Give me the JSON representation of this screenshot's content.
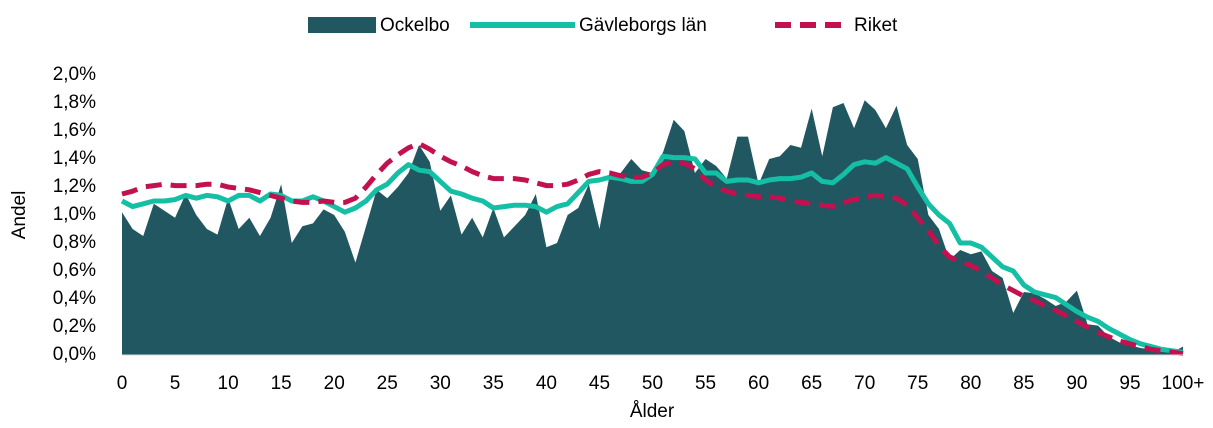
{
  "chart_data": {
    "type": "area-line",
    "xlabel": "Ålder",
    "ylabel": "Andel",
    "categories": [
      "0",
      null,
      null,
      null,
      null,
      "5",
      null,
      null,
      null,
      null,
      "10",
      null,
      null,
      null,
      null,
      "15",
      null,
      null,
      null,
      null,
      "20",
      null,
      null,
      null,
      null,
      "25",
      null,
      null,
      null,
      null,
      "30",
      null,
      null,
      null,
      null,
      "35",
      null,
      null,
      null,
      null,
      "40",
      null,
      null,
      null,
      null,
      "45",
      null,
      null,
      null,
      null,
      "50",
      null,
      null,
      null,
      null,
      "55",
      null,
      null,
      null,
      null,
      "60",
      null,
      null,
      null,
      null,
      "65",
      null,
      null,
      null,
      null,
      "70",
      null,
      null,
      null,
      null,
      "75",
      null,
      null,
      null,
      null,
      "80",
      null,
      null,
      null,
      null,
      "85",
      null,
      null,
      null,
      null,
      "90",
      null,
      null,
      null,
      null,
      "95",
      null,
      null,
      null,
      null,
      "100+"
    ],
    "ylim": [
      0,
      2.0
    ],
    "yticks": [
      {
        "value": 0,
        "label": "0,0%"
      },
      {
        "value": 0.2,
        "label": "0,2%"
      },
      {
        "value": 0.4,
        "label": "0,4%"
      },
      {
        "value": 0.6,
        "label": "0,6%"
      },
      {
        "value": 0.8,
        "label": "0,8%"
      },
      {
        "value": 1.0,
        "label": "1,0%"
      },
      {
        "value": 1.2,
        "label": "1,2%"
      },
      {
        "value": 1.4,
        "label": "1,4%"
      },
      {
        "value": 1.6,
        "label": "1,6%"
      },
      {
        "value": 1.8,
        "label": "1,8%"
      },
      {
        "value": 2.0,
        "label": "2,0%"
      }
    ],
    "legend": "top",
    "series": [
      {
        "name": "Ockelbo",
        "kind": "area",
        "color": "#215760",
        "values": [
          1.02,
          0.9,
          0.85,
          1.08,
          1.03,
          0.98,
          1.15,
          1.0,
          0.9,
          0.86,
          1.12,
          0.9,
          0.98,
          0.85,
          0.98,
          1.22,
          0.8,
          0.92,
          0.94,
          1.04,
          1.0,
          0.88,
          0.66,
          0.92,
          1.18,
          1.12,
          1.2,
          1.3,
          1.5,
          1.38,
          1.03,
          1.14,
          0.86,
          0.98,
          0.84,
          1.05,
          0.84,
          0.92,
          1.0,
          1.15,
          0.77,
          0.8,
          1.0,
          1.05,
          1.22,
          0.9,
          1.3,
          1.3,
          1.4,
          1.32,
          1.3,
          1.45,
          1.68,
          1.6,
          1.3,
          1.4,
          1.35,
          1.26,
          1.56,
          1.56,
          1.22,
          1.4,
          1.42,
          1.5,
          1.48,
          1.76,
          1.42,
          1.77,
          1.8,
          1.62,
          1.82,
          1.75,
          1.62,
          1.78,
          1.5,
          1.4,
          1.0,
          0.9,
          0.68,
          0.75,
          0.72,
          0.74,
          0.6,
          0.55,
          0.3,
          0.45,
          0.44,
          0.4,
          0.35,
          0.38,
          0.46,
          0.22,
          0.21,
          0.13,
          0.09,
          0.07,
          0.05,
          0.04,
          0.03,
          0.02,
          0.06
        ]
      },
      {
        "name": "Gävleborgs län",
        "kind": "line",
        "color": "#14bfa6",
        "values": [
          1.1,
          1.06,
          1.08,
          1.1,
          1.1,
          1.11,
          1.14,
          1.12,
          1.14,
          1.13,
          1.1,
          1.14,
          1.14,
          1.1,
          1.15,
          1.14,
          1.1,
          1.1,
          1.13,
          1.1,
          1.06,
          1.02,
          1.05,
          1.1,
          1.18,
          1.22,
          1.3,
          1.36,
          1.32,
          1.31,
          1.24,
          1.17,
          1.15,
          1.12,
          1.1,
          1.05,
          1.06,
          1.07,
          1.07,
          1.06,
          1.02,
          1.06,
          1.08,
          1.16,
          1.24,
          1.25,
          1.27,
          1.26,
          1.24,
          1.24,
          1.29,
          1.42,
          1.41,
          1.41,
          1.4,
          1.3,
          1.3,
          1.24,
          1.25,
          1.25,
          1.23,
          1.25,
          1.26,
          1.26,
          1.27,
          1.3,
          1.24,
          1.23,
          1.29,
          1.36,
          1.38,
          1.37,
          1.41,
          1.37,
          1.33,
          1.2,
          1.08,
          1.0,
          0.94,
          0.8,
          0.8,
          0.77,
          0.7,
          0.63,
          0.6,
          0.5,
          0.45,
          0.43,
          0.41,
          0.36,
          0.31,
          0.27,
          0.24,
          0.19,
          0.15,
          0.11,
          0.08,
          0.06,
          0.04,
          0.03,
          0.02
        ]
      },
      {
        "name": "Riket",
        "kind": "dashed",
        "color": "#c3104f",
        "values": [
          1.15,
          1.17,
          1.2,
          1.21,
          1.22,
          1.21,
          1.21,
          1.21,
          1.22,
          1.22,
          1.2,
          1.19,
          1.18,
          1.16,
          1.14,
          1.12,
          1.1,
          1.09,
          1.09,
          1.1,
          1.09,
          1.09,
          1.12,
          1.2,
          1.29,
          1.37,
          1.43,
          1.48,
          1.51,
          1.47,
          1.42,
          1.38,
          1.35,
          1.31,
          1.28,
          1.26,
          1.26,
          1.26,
          1.25,
          1.23,
          1.21,
          1.21,
          1.22,
          1.25,
          1.29,
          1.31,
          1.3,
          1.28,
          1.27,
          1.27,
          1.3,
          1.36,
          1.38,
          1.37,
          1.33,
          1.25,
          1.2,
          1.17,
          1.15,
          1.14,
          1.13,
          1.13,
          1.12,
          1.1,
          1.09,
          1.08,
          1.07,
          1.06,
          1.09,
          1.11,
          1.13,
          1.14,
          1.13,
          1.12,
          1.07,
          0.98,
          0.89,
          0.78,
          0.7,
          0.67,
          0.64,
          0.6,
          0.55,
          0.5,
          0.46,
          0.42,
          0.39,
          0.35,
          0.32,
          0.28,
          0.24,
          0.2,
          0.16,
          0.13,
          0.1,
          0.08,
          0.06,
          0.04,
          0.03,
          0.02,
          0.01
        ]
      }
    ]
  }
}
